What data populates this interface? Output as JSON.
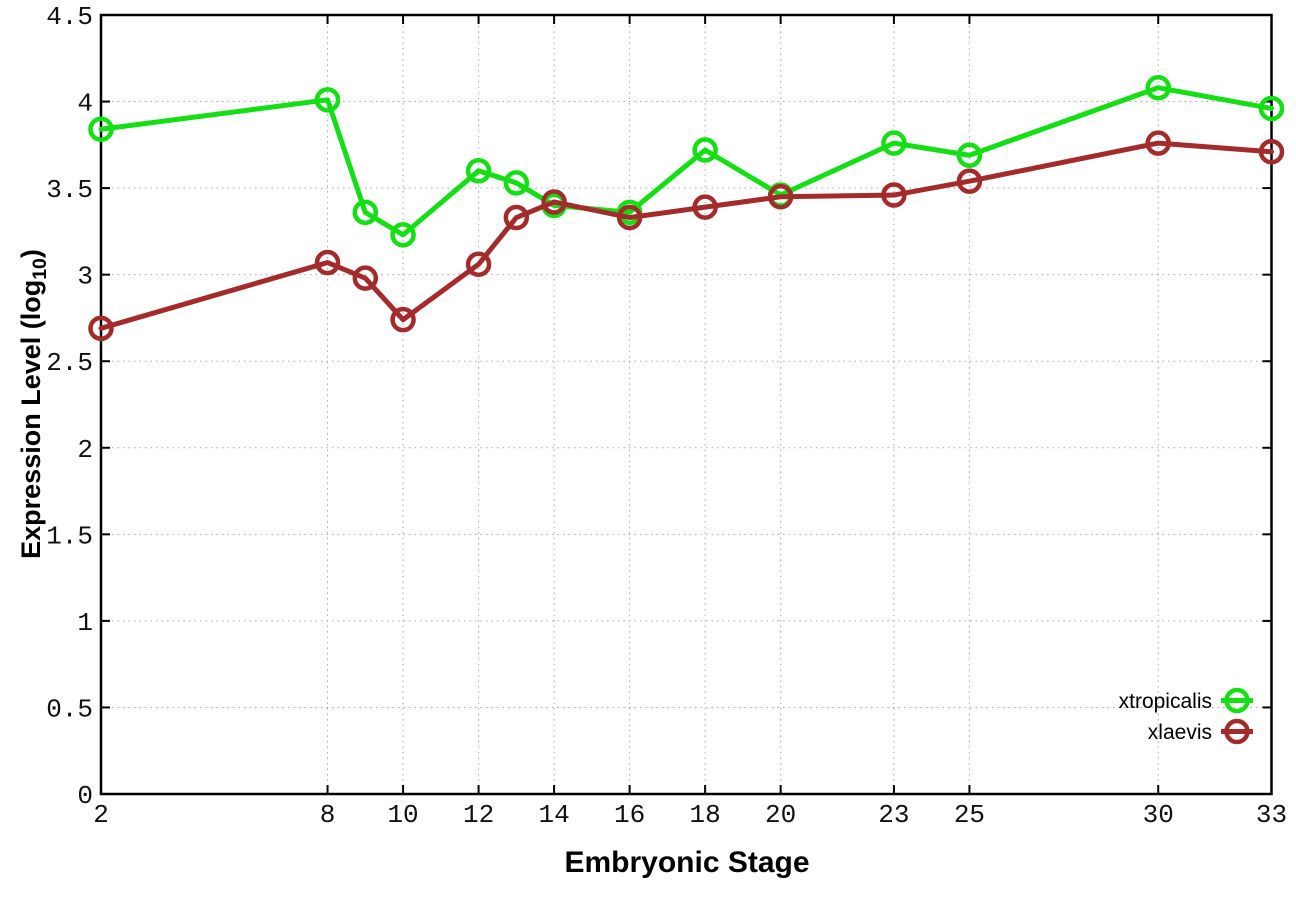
{
  "chart_data": {
    "type": "line",
    "title": "",
    "xlabel": "Embryonic Stage",
    "ylabel": "Expression Level (log10)",
    "ylabel_parts": {
      "pre": "Expression Level (log",
      "sub": "10",
      "post": ")"
    },
    "xlim": [
      2,
      33
    ],
    "ylim": [
      0,
      4.5
    ],
    "x_ticks": [
      2,
      8,
      10,
      12,
      14,
      16,
      18,
      20,
      23,
      25,
      30,
      33
    ],
    "y_ticks": [
      0,
      0.5,
      1,
      1.5,
      2,
      2.5,
      3,
      3.5,
      4,
      4.5
    ],
    "grid": true,
    "grid_style": "dotted",
    "legend_position": "inside-bottom-right",
    "x": [
      2,
      8,
      9,
      10,
      12,
      13,
      14,
      16,
      18,
      20,
      23,
      25,
      30,
      33
    ],
    "series": [
      {
        "name": "xtropicalis",
        "color": "#14DE14",
        "marker": "open-circle",
        "values": [
          3.84,
          4.01,
          3.36,
          3.23,
          3.6,
          3.53,
          3.4,
          3.36,
          3.72,
          3.46,
          3.76,
          3.69,
          4.08,
          3.96
        ]
      },
      {
        "name": "xlaevis",
        "color": "#A42B2B",
        "marker": "open-circle",
        "values": [
          2.69,
          3.07,
          2.98,
          2.74,
          3.06,
          3.33,
          3.42,
          3.33,
          3.39,
          3.45,
          3.46,
          3.54,
          3.76,
          3.71
        ]
      }
    ],
    "colors": {
      "grid": "#A8A8A8",
      "border": "#000000",
      "tick_text": "#111111"
    }
  }
}
